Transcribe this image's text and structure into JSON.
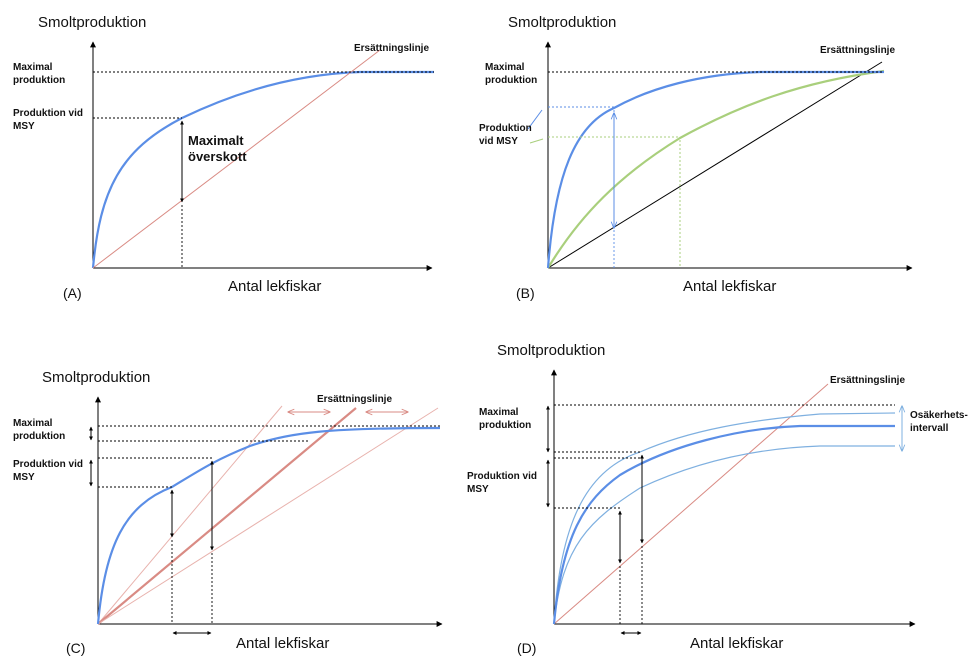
{
  "panelA": {
    "panel_label": "(A)",
    "y_axis_label": "Smoltproduktion",
    "x_axis_label": "Antal lekfiskar",
    "replacement_line_label": "Ersättningslinje",
    "max_production_label": [
      "Maximal",
      "produktion"
    ],
    "msy_label": [
      "Produktion vid",
      "MSY"
    ],
    "surplus_label": [
      "Maximalt",
      "överskott"
    ]
  },
  "panelB": {
    "panel_label": "(B)",
    "y_axis_label": "Smoltproduktion",
    "x_axis_label": "Antal lekfiskar",
    "replacement_line_label": "Ersättningslinje",
    "max_production_label": [
      "Maximal",
      "produktion"
    ],
    "msy_label": [
      "Produktion",
      "vid MSY"
    ]
  },
  "panelC": {
    "panel_label": "(C)",
    "y_axis_label": "Smoltproduktion",
    "x_axis_label": "Antal lekfiskar",
    "replacement_line_label": "Ersättningslinje",
    "max_production_label": [
      "Maximal",
      "produktion"
    ],
    "msy_label": [
      "Produktion vid",
      "MSY"
    ]
  },
  "panelD": {
    "panel_label": "(D)",
    "y_axis_label": "Smoltproduktion",
    "x_axis_label": "Antal lekfiskar",
    "replacement_line_label": "Ersättningslinje",
    "max_production_label": [
      "Maximal",
      "produktion"
    ],
    "msy_label": [
      "Produktion vid",
      "MSY"
    ],
    "uncertainty_label": [
      "Osäkerhets-",
      "intervall"
    ]
  },
  "colors": {
    "stock_recruitment_curve": "#5b8ee6",
    "alternative_curve": "#a9cf7c",
    "replacement_line": "#d98b84",
    "replacement_line_black": "#000000",
    "uncertainty_bounds": "#7fb0e0",
    "axis": "#000000"
  }
}
